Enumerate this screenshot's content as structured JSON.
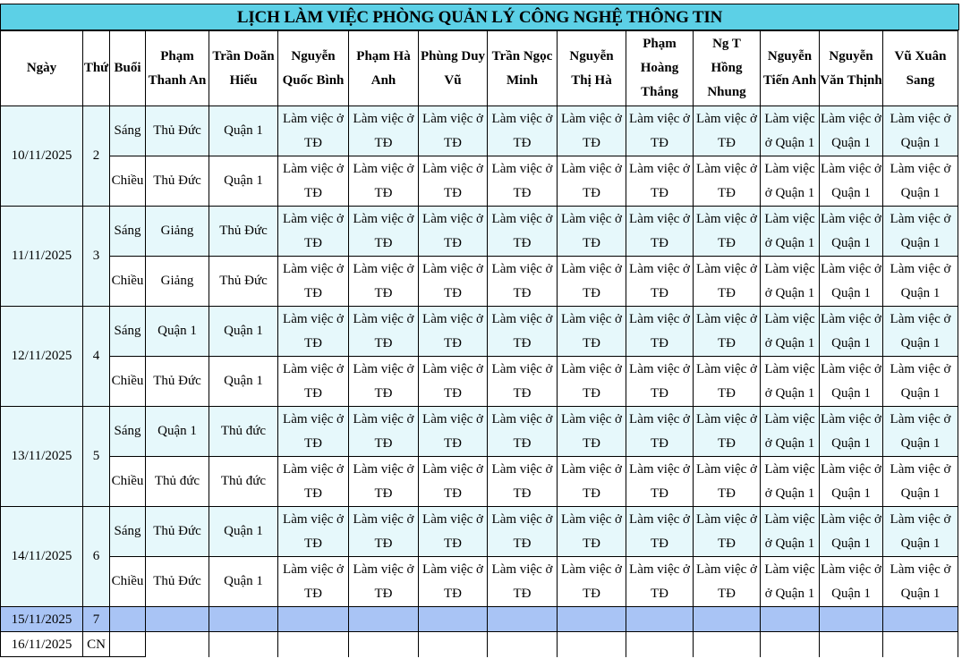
{
  "title": "LỊCH LÀM VIỆC PHÒNG QUẢN LÝ CÔNG NGHỆ THÔNG TIN",
  "headers": {
    "ngay": "Ngày",
    "thu": "Thứ",
    "buoi": "Buổi",
    "people": [
      [
        "Phạm",
        "Thanh An"
      ],
      [
        "Trần Doãn",
        "Hiếu"
      ],
      [
        "Nguyễn",
        "Quốc Bình"
      ],
      [
        "Phạm Hà",
        "Anh"
      ],
      [
        "Phùng Duy",
        "Vũ"
      ],
      [
        "Trần Ngọc",
        "Minh"
      ],
      [
        "Nguyễn",
        "Thị Hà"
      ],
      [
        "Phạm",
        "Hoàng",
        "Thắng"
      ],
      [
        "Ng T",
        "Hồng",
        "Nhung"
      ],
      [
        "Nguyễn",
        "Tiến Anh"
      ],
      [
        "Nguyễn",
        "Văn Thịnh"
      ],
      [
        "Vũ Xuân",
        "Sang"
      ]
    ]
  },
  "common": {
    "td": [
      "Làm việc ở",
      "TĐ"
    ],
    "q1a": [
      "Làm việc",
      "ở Quận 1"
    ],
    "q1b": [
      "Làm việc ở",
      "Quận 1"
    ]
  },
  "days": [
    {
      "date": "10/11/2025",
      "thu": "2",
      "sessions": [
        {
          "buoi": "Sáng",
          "an": "Thủ Đức",
          "hieu": "Quận 1"
        },
        {
          "buoi": "Chiều",
          "an": "Thủ Đức",
          "hieu": "Quận 1"
        }
      ]
    },
    {
      "date": "11/11/2025",
      "thu": "3",
      "sessions": [
        {
          "buoi": "Sáng",
          "an": "Giảng",
          "hieu": "Thủ Đức"
        },
        {
          "buoi": "Chiều",
          "an": "Giảng",
          "hieu": "Thủ Đức"
        }
      ]
    },
    {
      "date": "12/11/2025",
      "thu": "4",
      "sessions": [
        {
          "buoi": "Sáng",
          "an": "Quận 1",
          "hieu": "Quận 1"
        },
        {
          "buoi": "Chiều",
          "an": "Thủ Đức",
          "hieu": "Quận 1"
        }
      ]
    },
    {
      "date": "13/11/2025",
      "thu": "5",
      "sessions": [
        {
          "buoi": "Sáng",
          "an": "Quận 1",
          "hieu": "Thủ đức"
        },
        {
          "buoi": "Chiều",
          "an": "Thủ đức",
          "hieu": "Thủ đức"
        }
      ]
    },
    {
      "date": "14/11/2025",
      "thu": "6",
      "sessions": [
        {
          "buoi": "Sáng",
          "an": "Thủ Đức",
          "hieu": "Quận 1"
        },
        {
          "buoi": "Chiều",
          "an": "Thủ Đức",
          "hieu": "Quận 1"
        }
      ]
    }
  ],
  "weekend": [
    {
      "date": "15/11/2025",
      "thu": "7"
    },
    {
      "date": "16/11/2025",
      "thu": "CN"
    }
  ]
}
